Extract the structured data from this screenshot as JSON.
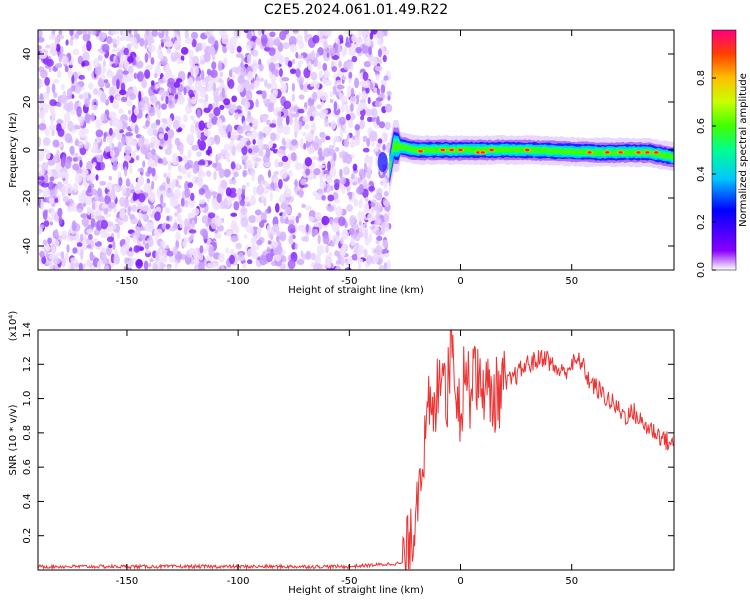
{
  "title": "C2E5.2024.061.01.49.R22",
  "chart_data": [
    {
      "type": "heatmap",
      "xlabel": "Height of straight line (km)",
      "ylabel": "Frequency (Hz)",
      "xlim": [
        -190,
        96
      ],
      "ylim": [
        -50,
        50
      ],
      "x_ticks": [
        -150,
        -100,
        -50,
        0,
        50
      ],
      "y_ticks": [
        -40,
        -20,
        0,
        20,
        40
      ],
      "colorbar": {
        "label": "Normalized spectral amplitude",
        "range": [
          0,
          1
        ],
        "ticks": [
          0.0,
          0.2,
          0.4,
          0.6,
          0.8
        ],
        "colormap": [
          "#ffffff",
          "#8a00ff",
          "#0000ff",
          "#00c8ff",
          "#00ff90",
          "#40ff00",
          "#c8ff00",
          "#ffc000",
          "#ff4000",
          "#ff0080"
        ]
      },
      "regions": [
        {
          "x_range": [
            -190,
            -32
          ],
          "y_range": [
            -50,
            50
          ],
          "description_values": "scattered low amplitude 0.1-0.3 purple noise"
        },
        {
          "x_range": [
            -32,
            96
          ],
          "center_frequency": [
            [
              -32,
              -8
            ],
            [
              -30,
              2
            ],
            [
              -20,
              0
            ],
            [
              0,
              0
            ],
            [
              30,
              0
            ],
            [
              60,
              -1
            ],
            [
              85,
              -1
            ],
            [
              96,
              -3
            ]
          ],
          "peak_amplitude": 0.9
        }
      ],
      "grid": false
    },
    {
      "type": "line",
      "xlabel": "Height of straight line (km)",
      "ylabel": "SNR (10 * v/v)",
      "y_scale_label": "(x10⁴)",
      "xlim": [
        -190,
        96
      ],
      "ylim": [
        0,
        1.4
      ],
      "x_ticks": [
        -150,
        -100,
        -50,
        0,
        50
      ],
      "y_ticks": [
        0.2,
        0.4,
        0.6,
        0.8,
        1.0,
        1.2,
        1.4
      ],
      "color": "#ee3333",
      "series": [
        {
          "x": [
            -190,
            -150,
            -100,
            -50,
            -26,
            -22,
            -20,
            -18,
            -16,
            -14,
            -12,
            -10,
            -8,
            -6,
            -4,
            -2,
            0,
            2,
            4,
            6,
            8,
            10,
            14,
            18,
            22,
            26,
            30,
            34,
            38,
            42,
            46,
            50,
            54,
            58,
            62,
            66,
            70,
            74,
            78,
            82,
            86,
            90,
            96
          ],
          "y": [
            0.02,
            0.02,
            0.02,
            0.02,
            0.04,
            0.15,
            0.4,
            0.65,
            0.7,
            0.95,
            0.85,
            1.1,
            1.3,
            1.0,
            1.4,
            1.1,
            0.9,
            1.25,
            1.0,
            1.3,
            1.05,
            1.1,
            1.0,
            1.05,
            1.1,
            1.15,
            1.2,
            1.22,
            1.25,
            1.18,
            1.15,
            1.2,
            1.22,
            1.1,
            1.05,
            1.0,
            0.95,
            0.9,
            0.92,
            0.85,
            0.82,
            0.78,
            0.72
          ]
        }
      ],
      "grid": false
    }
  ]
}
